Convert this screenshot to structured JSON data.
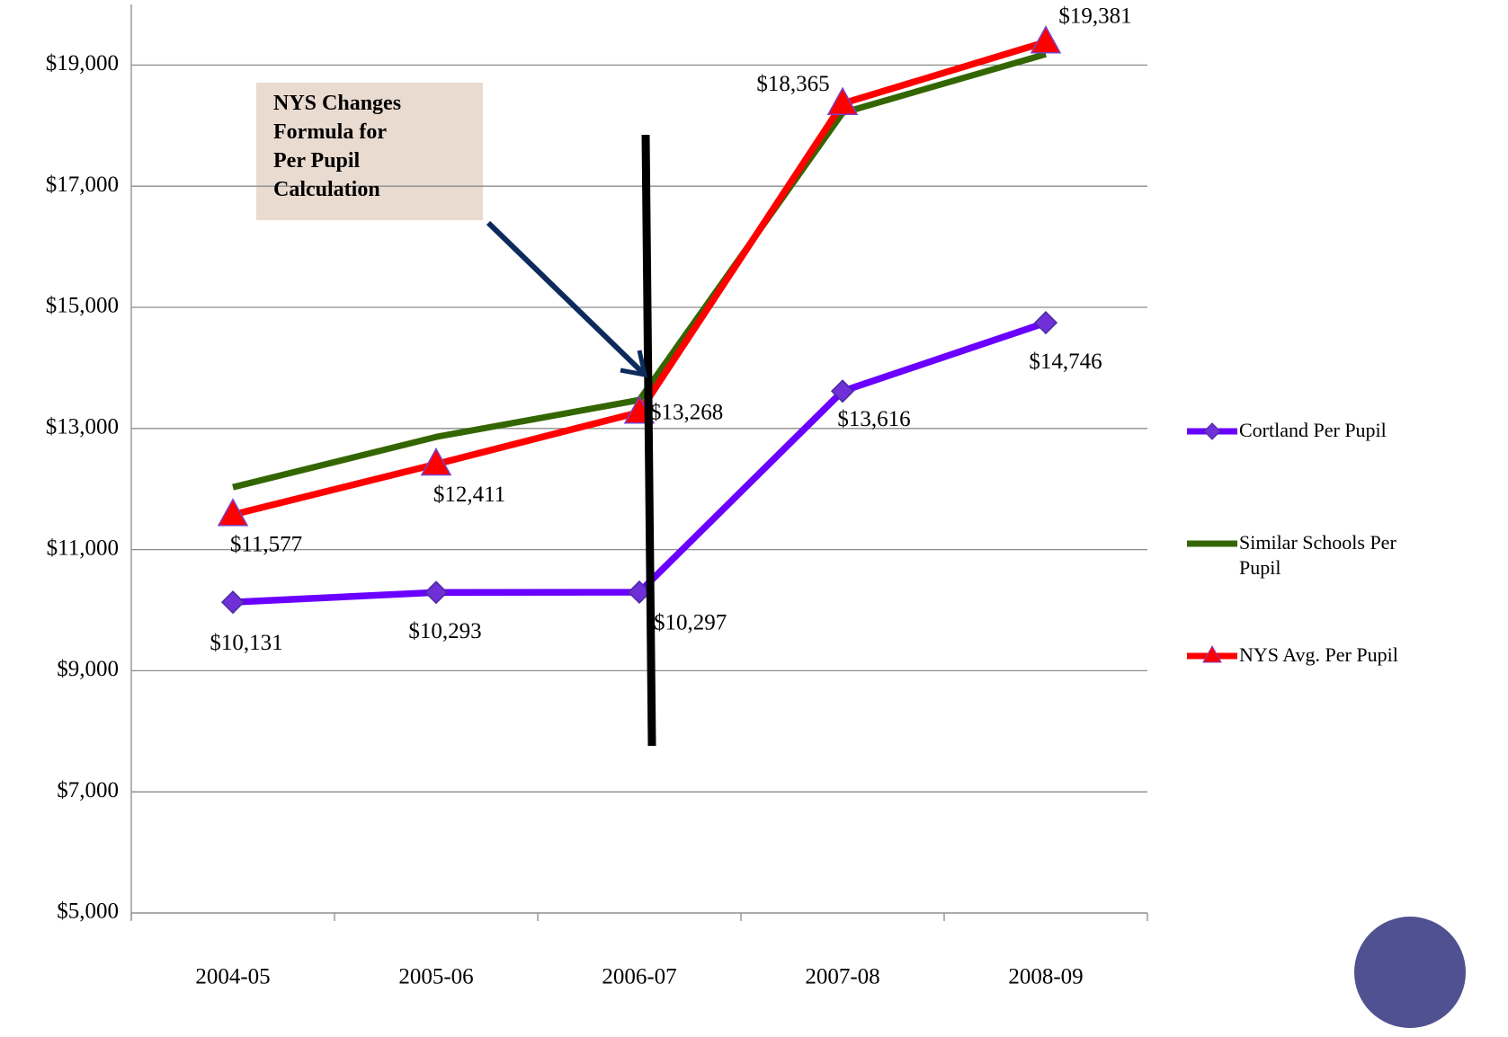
{
  "chart_data": {
    "type": "line",
    "annotation": [
      "NYS Changes",
      "Formula for",
      "Per Pupil",
      "Calculation"
    ],
    "categories": [
      "2004-05",
      "2005-06",
      "2006-07",
      "2007-08",
      "2008-09"
    ],
    "series": [
      {
        "name": "Similar Schools Per Pupil",
        "color": "#336600",
        "marker": "none",
        "values": [
          12030,
          12860,
          13470,
          18210,
          19180
        ]
      },
      {
        "name": "NYS Avg. Per Pupil",
        "color": "#ff0000",
        "marker": "triangle",
        "values": [
          11577,
          12411,
          13268,
          18365,
          19381
        ],
        "value_labels": [
          "$11,577",
          "$12,411",
          "$13,268",
          "$18,365",
          "$19,381"
        ]
      },
      {
        "name": "Cortland Per Pupil",
        "color": "#6a00ff",
        "marker": "diamond",
        "values": [
          10131,
          10293,
          10297,
          13616,
          14746
        ],
        "value_labels": [
          "$10,131",
          "$10,293",
          "$10,297",
          "$13,616",
          "$14,746"
        ]
      }
    ],
    "legend_order": [
      2,
      0,
      1
    ],
    "legend": "right",
    "grid": true,
    "ylim": [
      5000,
      20000
    ],
    "yticks": [
      {
        "value": 5000,
        "label": "$5,000"
      },
      {
        "value": 7000,
        "label": "$7,000"
      },
      {
        "value": 9000,
        "label": "$9,000"
      },
      {
        "value": 11000,
        "label": "$11,000"
      },
      {
        "value": 13000,
        "label": "$13,000"
      },
      {
        "value": 15000,
        "label": "$15,000"
      },
      {
        "value": 17000,
        "label": "$17,000"
      },
      {
        "value": 19000,
        "label": "$19,000"
      }
    ]
  }
}
